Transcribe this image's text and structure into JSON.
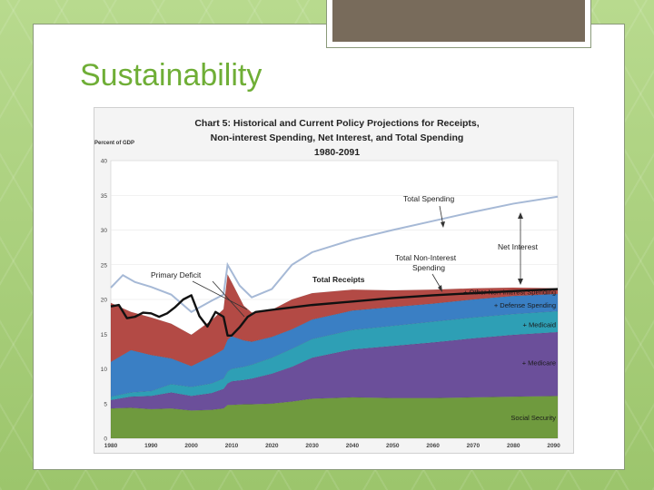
{
  "slide": {
    "title": "Sustainability"
  },
  "colors": {
    "social_security": "#6f9a3e",
    "medicare": "#6b4f9a",
    "medicaid": "#2e9fb5",
    "defense": "#3a7fc4",
    "other": "#b34a45",
    "receipts": "#111111",
    "total_spending": "#a6b9d6",
    "annotation": "#222222"
  },
  "chart_data": {
    "type": "area",
    "title_lines": [
      "Chart 5: Historical and Current Policy Projections for Receipts,",
      "Non-interest Spending, Net Interest, and Total Spending",
      "1980-2091"
    ],
    "ylabel": "Percent of GDP",
    "ylim": [
      0,
      40
    ],
    "xlim": [
      1980,
      2091
    ],
    "y_ticks": [
      0,
      5,
      10,
      15,
      20,
      25,
      30,
      35,
      40
    ],
    "x_ticks": [
      1980,
      1990,
      2000,
      2010,
      2020,
      2030,
      2040,
      2050,
      2060,
      2070,
      2080,
      2090
    ],
    "x": [
      1980,
      1985,
      1990,
      1995,
      2000,
      2005,
      2008,
      2009,
      2010,
      2013,
      2015,
      2020,
      2025,
      2030,
      2040,
      2050,
      2060,
      2070,
      2080,
      2091
    ],
    "stacked_series": [
      {
        "name": "Social Security",
        "label": "Social Security",
        "color_key": "social_security",
        "values": [
          4.3,
          4.4,
          4.2,
          4.3,
          4.0,
          4.1,
          4.3,
          4.8,
          4.8,
          4.9,
          4.9,
          5.0,
          5.3,
          5.7,
          5.9,
          5.8,
          5.8,
          5.9,
          6.0,
          6.1
        ]
      },
      {
        "name": "Medicare",
        "label": "+  Medicare",
        "color_key": "medicare",
        "values": [
          1.2,
          1.6,
          1.9,
          2.3,
          2.1,
          2.4,
          2.8,
          3.1,
          3.4,
          3.5,
          3.7,
          4.3,
          5.0,
          5.9,
          6.9,
          7.5,
          8.0,
          8.5,
          8.9,
          9.2
        ]
      },
      {
        "name": "Medicaid",
        "label": "+ Medicaid",
        "color_key": "medicaid",
        "values": [
          0.5,
          0.6,
          0.7,
          1.2,
          1.3,
          1.4,
          1.5,
          1.7,
          1.8,
          1.9,
          2.0,
          2.3,
          2.6,
          2.7,
          2.8,
          2.9,
          3.0,
          3.0,
          3.0,
          3.0
        ]
      },
      {
        "name": "Defense Spending",
        "label": "+ Defense Spending",
        "color_key": "defense",
        "values": [
          5.0,
          6.1,
          5.2,
          3.7,
          3.0,
          3.9,
          4.2,
          4.6,
          4.7,
          3.8,
          3.3,
          3.0,
          2.8,
          2.8,
          2.8,
          2.7,
          2.6,
          2.6,
          2.6,
          2.5
        ]
      },
      {
        "name": "Other Non-interest Spending",
        "label": "+ Other Non-interest Spending",
        "color_key": "other",
        "values": [
          8.5,
          5.5,
          5.4,
          5.0,
          4.5,
          5.2,
          5.8,
          9.4,
          7.8,
          5.0,
          4.2,
          3.9,
          4.3,
          3.8,
          3.0,
          2.4,
          2.0,
          1.6,
          1.2,
          0.8
        ]
      }
    ],
    "receipts": {
      "name": "Total Receipts",
      "label": "Total Receipts",
      "x": [
        1980,
        1982,
        1984,
        1986,
        1988,
        1990,
        1992,
        1994,
        1996,
        1998,
        2000,
        2002,
        2004,
        2006,
        2008,
        2009,
        2010,
        2012,
        2014,
        2016,
        2020,
        2030,
        2040,
        2050,
        2060,
        2070,
        2080,
        2091
      ],
      "values": [
        19.0,
        19.2,
        17.3,
        17.5,
        18.1,
        18.0,
        17.5,
        18.0,
        18.9,
        20.0,
        20.6,
        17.6,
        16.1,
        18.2,
        17.5,
        14.8,
        14.8,
        16.0,
        17.5,
        18.2,
        18.5,
        19.2,
        19.7,
        20.2,
        20.6,
        20.9,
        21.2,
        21.5
      ]
    },
    "total_spending": {
      "name": "Total Spending",
      "label": "Total Spending",
      "x": [
        1980,
        1983,
        1986,
        1990,
        1995,
        2000,
        2005,
        2008,
        2009,
        2010,
        2012,
        2015,
        2020,
        2025,
        2030,
        2040,
        2050,
        2060,
        2070,
        2080,
        2091
      ],
      "values": [
        21.7,
        23.5,
        22.5,
        21.8,
        20.7,
        18.2,
        19.8,
        20.7,
        25.0,
        24.0,
        22.0,
        20.3,
        21.5,
        25.0,
        26.8,
        28.6,
        30.0,
        31.3,
        32.6,
        33.8,
        34.8
      ]
    },
    "annotations": {
      "total_spending": "Total Spending",
      "net_interest": "Net Interest",
      "total_non_interest_spending": [
        "Total Non-Interest",
        "Spending"
      ],
      "primary_deficit": "Primary Deficit",
      "total_receipts": "Total Receipts"
    }
  }
}
